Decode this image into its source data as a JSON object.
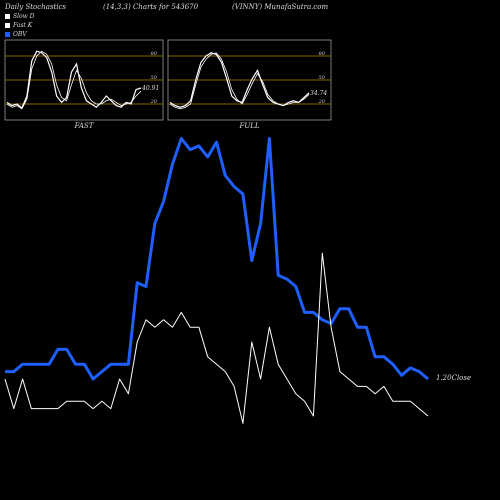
{
  "header": {
    "left": "Daily Stochastics",
    "middle": "(14,3,3) Charts for 543670",
    "right": "(VINNY) MunafaSutra.com"
  },
  "legend": [
    {
      "label": "Slow D",
      "color": "#ffffff"
    },
    {
      "label": "Fast K",
      "color": "#ffffff"
    },
    {
      "label": "OBV",
      "color": "#1f5fff"
    }
  ],
  "colors": {
    "obv": "#1f5fff",
    "price": "#ffffff",
    "level_line": "#b8860b",
    "panel_border": "#999999"
  },
  "chart_data": [
    {
      "type": "line",
      "title": "FAST",
      "value_label": "40.91",
      "ylim": [
        0,
        100
      ],
      "level_lines": [
        20,
        50,
        80
      ],
      "y_ticks": [
        80,
        50,
        20
      ],
      "series": [
        {
          "values": [
            22,
            18,
            20,
            15,
            30,
            74,
            86,
            84,
            78,
            60,
            30,
            22,
            28,
            60,
            70,
            40,
            24,
            20,
            16,
            22,
            30,
            24,
            18,
            16,
            22,
            20,
            38,
            40
          ]
        },
        {
          "values": [
            20,
            16,
            18,
            14,
            26,
            64,
            80,
            86,
            82,
            70,
            44,
            28,
            24,
            44,
            62,
            52,
            34,
            24,
            20,
            20,
            24,
            26,
            22,
            18,
            20,
            22,
            30,
            36
          ]
        }
      ]
    },
    {
      "type": "line",
      "title": "FULL",
      "value_label": "34.74",
      "ylim": [
        0,
        100
      ],
      "level_lines": [
        20,
        50,
        80
      ],
      "y_ticks": [
        80,
        50,
        20
      ],
      "series": [
        {
          "values": [
            22,
            18,
            16,
            18,
            24,
            50,
            72,
            80,
            84,
            82,
            72,
            52,
            30,
            24,
            22,
            38,
            52,
            62,
            44,
            28,
            22,
            20,
            18,
            22,
            24,
            22,
            28,
            34
          ]
        },
        {
          "values": [
            20,
            16,
            14,
            16,
            20,
            44,
            66,
            76,
            82,
            84,
            76,
            60,
            38,
            26,
            20,
            32,
            46,
            58,
            48,
            32,
            24,
            20,
            18,
            20,
            22,
            22,
            26,
            32
          ]
        }
      ]
    },
    {
      "type": "line",
      "close_label": "1.20Close",
      "series": [
        {
          "name": "OBV",
          "values": [
            32,
            32,
            34,
            34,
            34,
            34,
            38,
            38,
            34,
            34,
            30,
            32,
            34,
            34,
            34,
            56,
            55,
            72,
            78,
            88,
            95,
            92,
            93,
            90,
            94,
            85,
            82,
            80,
            62,
            72,
            95,
            58,
            57,
            55,
            48,
            48,
            46,
            45,
            49,
            49,
            44,
            44,
            36,
            36,
            34,
            31,
            33,
            32,
            30
          ]
        },
        {
          "values": [
            30,
            22,
            30,
            22,
            22,
            22,
            22,
            24,
            24,
            24,
            22,
            24,
            22,
            30,
            26,
            40,
            46,
            44,
            46,
            44,
            48,
            44,
            44,
            36,
            34,
            32,
            28,
            18,
            40,
            30,
            44,
            34,
            30,
            26,
            24,
            20,
            64,
            44,
            32,
            30,
            28,
            28,
            26,
            28,
            24,
            24,
            24,
            22,
            20
          ]
        }
      ]
    }
  ]
}
